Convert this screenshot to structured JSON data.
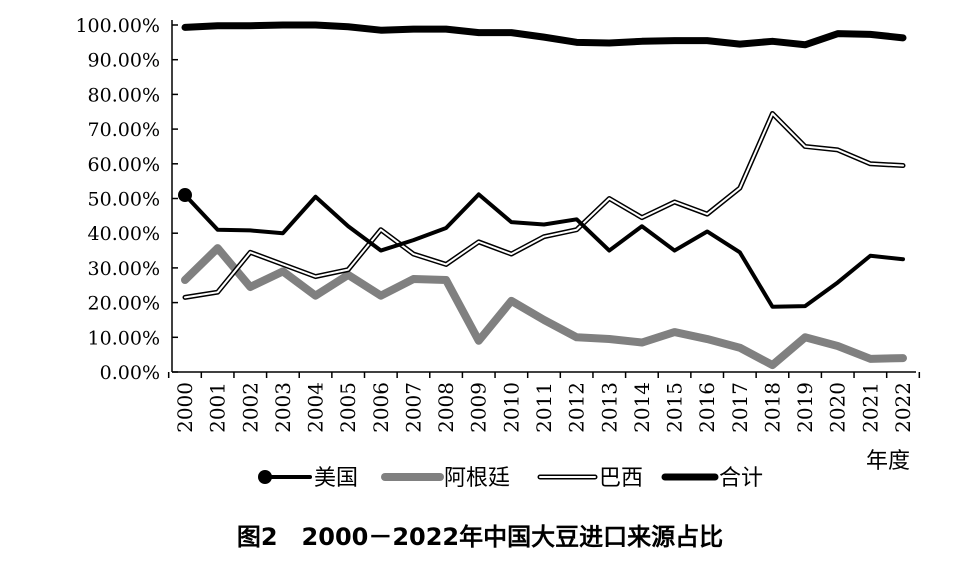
{
  "chart_data": {
    "type": "line",
    "title": "图2　2000－2022年中国大豆进口来源占比",
    "xlabel": "年度",
    "ylabel": "",
    "ylim": [
      0,
      100
    ],
    "y_ticks": [
      "0.00%",
      "10.00%",
      "20.00%",
      "30.00%",
      "40.00%",
      "50.00%",
      "60.00%",
      "70.00%",
      "80.00%",
      "90.00%",
      "100.00%"
    ],
    "categories": [
      "2000",
      "2001",
      "2002",
      "2003",
      "2004",
      "2005",
      "2006",
      "2007",
      "2008",
      "2009",
      "2010",
      "2011",
      "2012",
      "2013",
      "2014",
      "2015",
      "2016",
      "2017",
      "2018",
      "2019",
      "2020",
      "2021",
      "2022"
    ],
    "legend_position": "bottom",
    "series": [
      {
        "name": "美国",
        "color": "#000000",
        "style": "thin-with-marker",
        "values": [
          51.0,
          41.0,
          40.8,
          40.0,
          50.5,
          42.0,
          35.0,
          38.0,
          41.5,
          51.2,
          43.2,
          42.5,
          44.0,
          35.0,
          42.0,
          35.0,
          40.5,
          34.5,
          18.8,
          19.0,
          25.8,
          33.5,
          32.5
        ]
      },
      {
        "name": "阿根廷",
        "color": "#808080",
        "style": "thick-gray",
        "values": [
          26.5,
          35.7,
          24.5,
          29.0,
          22.0,
          28.0,
          22.0,
          26.8,
          26.5,
          9.0,
          20.5,
          15.0,
          10.0,
          9.5,
          8.5,
          11.5,
          9.5,
          7.0,
          2.0,
          10.0,
          7.5,
          3.8,
          4.0
        ]
      },
      {
        "name": "巴西",
        "color": "#000000",
        "style": "double-line",
        "values": [
          21.5,
          23.0,
          34.5,
          31.0,
          27.5,
          29.5,
          41.0,
          34.0,
          31.0,
          37.5,
          34.0,
          39.0,
          41.0,
          50.0,
          44.5,
          49.0,
          45.5,
          53.0,
          74.5,
          65.0,
          64.0,
          60.0,
          59.5
        ]
      },
      {
        "name": "合计",
        "color": "#000000",
        "style": "thick-black",
        "values": [
          99.3,
          99.8,
          99.8,
          100.0,
          100.0,
          99.5,
          98.5,
          98.8,
          98.8,
          97.8,
          97.8,
          96.5,
          95.0,
          94.8,
          95.3,
          95.5,
          95.5,
          94.5,
          95.3,
          94.3,
          97.5,
          97.3,
          96.3
        ]
      }
    ]
  }
}
